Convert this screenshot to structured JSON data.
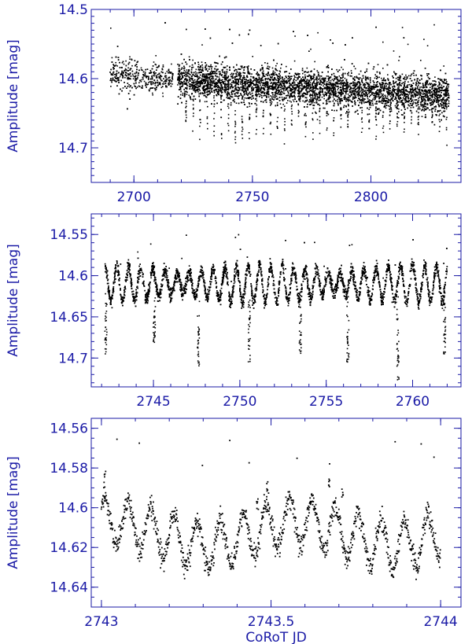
{
  "colors": {
    "axis": "#1a1aa6",
    "points": "#000000",
    "background": "#ffffff"
  },
  "chart_data": [
    {
      "type": "scatter",
      "panel": "top",
      "xlabel": "",
      "ylabel": "Amplitude [mag]",
      "xlim": [
        2682,
        2838
      ],
      "ylim": [
        14.75,
        14.5
      ],
      "y_inverted": true,
      "xticks": [
        2700,
        2750,
        2800
      ],
      "xticklabels": [
        "2700",
        "2750",
        "2800"
      ],
      "yticks": [
        14.5,
        14.6,
        14.7
      ],
      "yticklabels": [
        "14.5",
        "14.6",
        "14.7"
      ],
      "grid": false,
      "series": [
        {
          "data_start": 2690,
          "data_end": 2833,
          "baseline_start": 14.595,
          "baseline_end": 14.625,
          "gap": [
            2716.5,
            2718.5
          ],
          "eclipse_period": 2.97,
          "eclipse_first": 2722.0,
          "eclipse_depth": 0.08
        }
      ]
    },
    {
      "type": "scatter",
      "panel": "middle",
      "xlabel": "",
      "ylabel": "Amplitude [mag]",
      "xlim": [
        2741.4,
        2762.8
      ],
      "ylim": [
        14.735,
        14.525
      ],
      "y_inverted": true,
      "xticks": [
        2745,
        2750,
        2755,
        2760
      ],
      "xticklabels": [
        "2745",
        "2750",
        "2755",
        "2760"
      ],
      "yticks": [
        14.55,
        14.6,
        14.65,
        14.7
      ],
      "yticklabels": [
        "14.55",
        "14.6",
        "14.65",
        "14.7"
      ],
      "grid": false,
      "series": [
        {
          "data_start": 2742.2,
          "data_end": 2762.0,
          "baseline": 14.61,
          "eclipses": [
            {
              "x": 2742.25,
              "depth": 14.695
            },
            {
              "x": 2745.05,
              "depth": 14.685
            },
            {
              "x": 2747.6,
              "depth": 14.71
            },
            {
              "x": 2750.55,
              "depth": 14.705
            },
            {
              "x": 2753.5,
              "depth": 14.695
            },
            {
              "x": 2756.25,
              "depth": 14.705
            },
            {
              "x": 2759.15,
              "depth": 14.728
            },
            {
              "x": 2761.85,
              "depth": 14.695
            }
          ]
        }
      ]
    },
    {
      "type": "scatter",
      "panel": "bottom",
      "xlabel": "CoRoT JD",
      "ylabel": "Amplitude [mag]",
      "xlim": [
        2742.97,
        2744.06
      ],
      "ylim": [
        14.65,
        14.555
      ],
      "y_inverted": true,
      "xticks": [
        2743,
        2743.5,
        2744
      ],
      "xticklabels": [
        "2743",
        "2743.5",
        "2744"
      ],
      "yticks": [
        14.56,
        14.58,
        14.6,
        14.62,
        14.64
      ],
      "yticklabels": [
        "14.56",
        "14.58",
        "14.6",
        "14.62",
        "14.64"
      ],
      "grid": false,
      "series": [
        {
          "data_start": 2743.0,
          "data_end": 2744.0,
          "baseline": 14.613,
          "oscillation_period": 0.068,
          "oscillation_amplitude": 0.015,
          "peaks": [
            {
              "x": 2743.01,
              "y": 14.585
            },
            {
              "x": 2743.46,
              "y": 14.598
            },
            {
              "x": 2743.49,
              "y": 14.59
            },
            {
              "x": 2743.67,
              "y": 14.588
            },
            {
              "x": 2743.71,
              "y": 14.592
            }
          ]
        }
      ]
    }
  ]
}
